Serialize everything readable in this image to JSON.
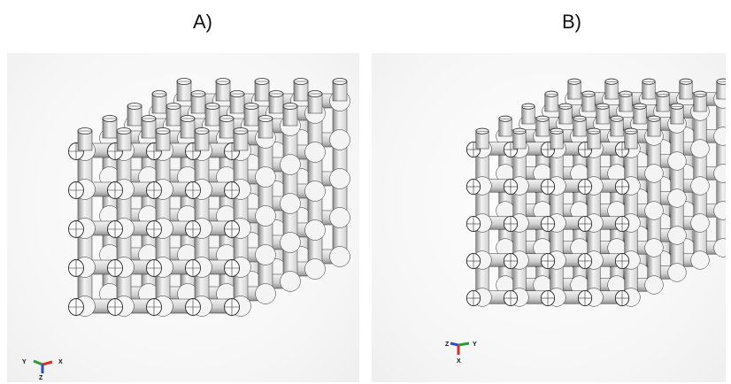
{
  "figure": {
    "panel_a_label": "A)",
    "panel_b_label": "B)"
  },
  "triad_a": {
    "axis_left": "Y",
    "axis_right": "X",
    "axis_down": "Z"
  },
  "triad_b": {
    "axis_left": "Z",
    "axis_right": "Y",
    "axis_down": "X"
  },
  "colors": {
    "strut_light": "#f4f4f4",
    "strut_mid": "#cfcfcf",
    "strut_dark": "#8e8e8e",
    "outline": "#2a2a2a",
    "axis_red": "#d9302a",
    "axis_green": "#2a9a3a",
    "axis_blue": "#2a4fd0"
  }
}
